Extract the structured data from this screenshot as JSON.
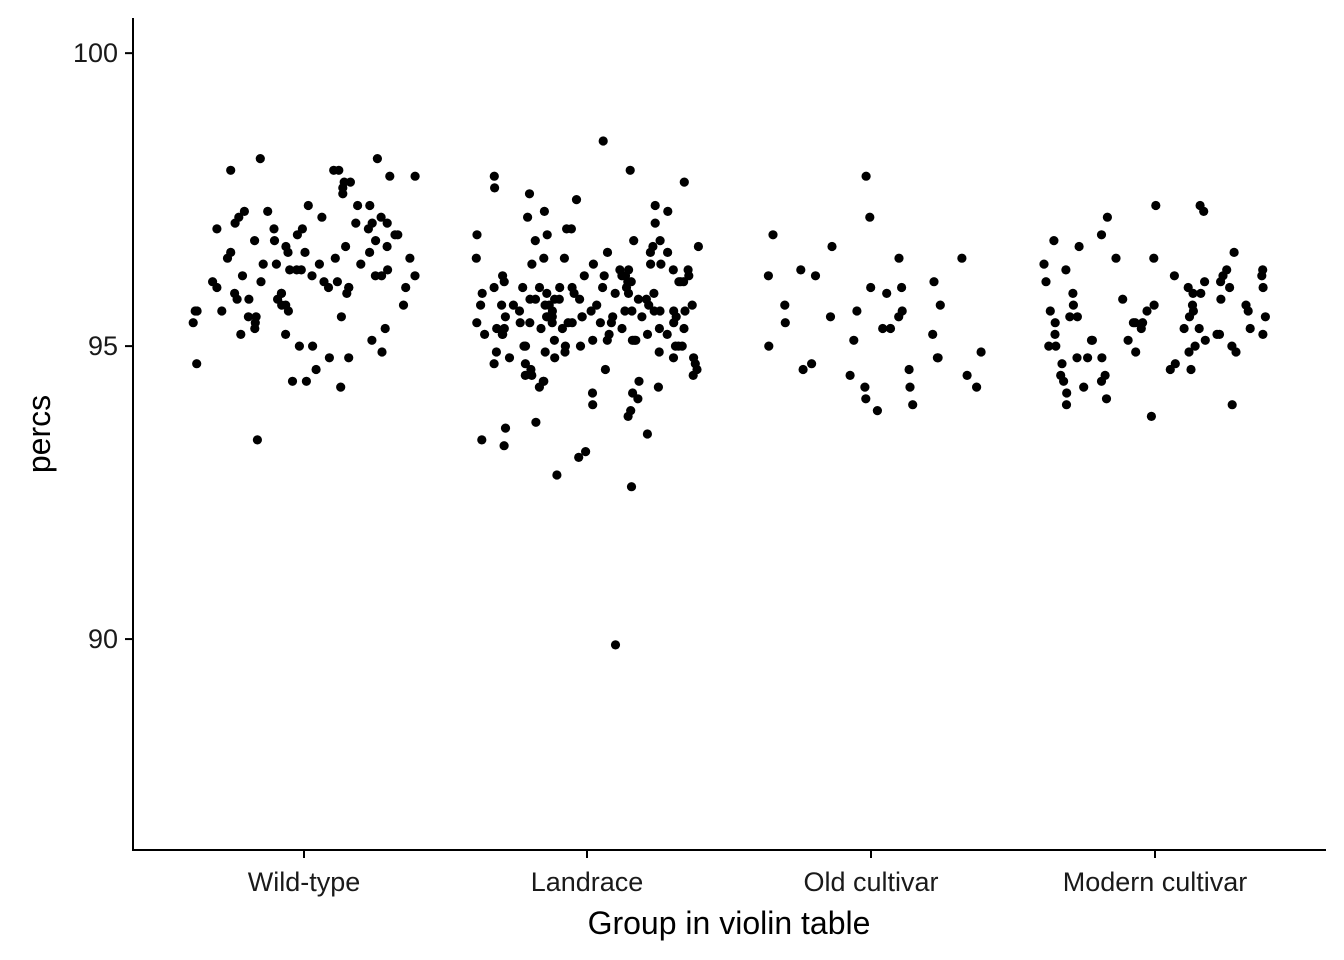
{
  "chart_data": {
    "type": "scatter",
    "subtype": "jitter strip plot",
    "xlabel": "Group in violin table",
    "ylabel": "percs",
    "categories": [
      "Wild-type",
      "Landrace",
      "Old cultivar",
      "Modern cultivar"
    ],
    "ylim": [
      86.4,
      100.6
    ],
    "yticks": [
      "90",
      "95",
      "100"
    ],
    "grid": false,
    "legend": "none",
    "point_color": "#000000",
    "series": [
      {
        "category": "Wild-type",
        "values": [
          98.0,
          98.2,
          98.0,
          97.9,
          97.8,
          97.7,
          98.0,
          97.9,
          97.8,
          98.2,
          97.4,
          97.3,
          97.4,
          97.1,
          97.2,
          97.3,
          97.2,
          97.0,
          97.1,
          97.2,
          97.0,
          96.9,
          97.1,
          97.0,
          96.8,
          96.8,
          96.9,
          96.7,
          96.7,
          96.6,
          96.8,
          96.6,
          96.5,
          96.4,
          96.4,
          96.6,
          96.5,
          96.3,
          96.4,
          96.2,
          96.3,
          96.3,
          96.2,
          96.1,
          96.2,
          96.2,
          96.0,
          96.0,
          96.1,
          96.1,
          95.9,
          95.9,
          96.0,
          95.8,
          95.8,
          95.7,
          95.7,
          95.7,
          95.6,
          95.6,
          95.5,
          95.6,
          95.5,
          95.4,
          95.5,
          95.3,
          95.2,
          95.2,
          95.1,
          95.0,
          95.0,
          94.9,
          94.8,
          94.8,
          94.7,
          94.6,
          94.4,
          94.4,
          94.3,
          93.4,
          96.3,
          96.0,
          95.8,
          97.4,
          96.9,
          96.0,
          95.6,
          96.5,
          96.1,
          95.9,
          97.1,
          96.7,
          95.4,
          96.6,
          96.2,
          97.0,
          95.9,
          96.4,
          97.6,
          95.3
        ]
      },
      {
        "category": "Landrace",
        "values": [
          98.5,
          98.0,
          97.9,
          97.8,
          97.7,
          97.6,
          97.5,
          97.4,
          97.3,
          97.3,
          97.2,
          97.1,
          97.0,
          97.0,
          96.9,
          96.9,
          96.8,
          96.8,
          96.7,
          96.7,
          96.6,
          96.6,
          96.5,
          96.5,
          96.4,
          96.4,
          96.3,
          96.3,
          96.2,
          96.2,
          96.2,
          96.1,
          96.1,
          96.1,
          96.0,
          96.0,
          96.0,
          95.9,
          95.9,
          95.9,
          95.8,
          95.8,
          95.8,
          95.7,
          95.7,
          95.7,
          95.7,
          95.6,
          95.6,
          95.6,
          95.6,
          95.5,
          95.5,
          95.5,
          95.5,
          95.4,
          95.4,
          95.4,
          95.4,
          95.3,
          95.3,
          95.3,
          95.2,
          95.2,
          95.2,
          95.1,
          95.1,
          95.1,
          95.0,
          95.0,
          95.0,
          94.9,
          94.9,
          94.8,
          94.8,
          94.7,
          94.7,
          94.6,
          94.6,
          94.5,
          94.5,
          94.4,
          94.4,
          94.3,
          94.3,
          94.2,
          94.1,
          94.0,
          93.9,
          93.8,
          93.7,
          93.6,
          93.5,
          93.4,
          93.3,
          93.2,
          93.1,
          92.8,
          92.6,
          89.9,
          96.2,
          95.6,
          95.4,
          96.0,
          95.1,
          95.7,
          95.3,
          96.1,
          95.5,
          94.9,
          96.3,
          95.8,
          95.2,
          95.0,
          96.5,
          95.6,
          94.8,
          95.9,
          95.4,
          96.0,
          95.7,
          95.5,
          95.3,
          96.2,
          95.1,
          94.6,
          96.4,
          95.8,
          95.6,
          95.0,
          94.4,
          96.6,
          95.2,
          95.9,
          95.4,
          94.7,
          96.1,
          95.5,
          95.7,
          95.3,
          96.0,
          94.9,
          95.8,
          96.3,
          95.1,
          95.6,
          95.4,
          96.2,
          94.5,
          95.0,
          95.9,
          96.8,
          95.5,
          95.2,
          95.7,
          96.1,
          94.2,
          95.6,
          96.4,
          95.3,
          95.8,
          95.0,
          94.8,
          96.0,
          95.4,
          95.5
        ]
      },
      {
        "category": "Old cultivar",
        "values": [
          97.9,
          97.2,
          96.9,
          96.7,
          96.5,
          96.5,
          96.3,
          96.2,
          96.2,
          96.1,
          96.0,
          96.0,
          95.9,
          95.7,
          95.7,
          95.6,
          95.6,
          95.5,
          95.5,
          95.4,
          95.3,
          95.3,
          95.2,
          95.1,
          95.0,
          94.9,
          94.8,
          94.8,
          94.7,
          94.6,
          94.6,
          94.5,
          94.5,
          94.3,
          94.3,
          94.3,
          94.1,
          94.0,
          93.9
        ]
      },
      {
        "category": "Modern cultivar",
        "values": [
          97.4,
          97.4,
          97.3,
          97.2,
          96.9,
          96.8,
          96.7,
          96.6,
          96.5,
          96.5,
          96.4,
          96.3,
          96.3,
          96.2,
          96.2,
          96.2,
          96.1,
          96.1,
          96.0,
          96.0,
          96.0,
          95.9,
          95.9,
          95.8,
          95.8,
          95.7,
          95.7,
          95.7,
          95.6,
          95.6,
          95.6,
          95.5,
          95.5,
          95.5,
          95.4,
          95.4,
          95.4,
          95.3,
          95.3,
          95.3,
          95.2,
          95.2,
          95.2,
          95.1,
          95.1,
          95.1,
          95.0,
          95.0,
          95.0,
          94.9,
          94.9,
          94.9,
          94.8,
          94.8,
          94.7,
          94.7,
          94.6,
          94.6,
          94.5,
          94.5,
          94.4,
          94.4,
          94.3,
          94.2,
          94.1,
          94.0,
          94.0,
          93.8,
          95.6,
          95.2,
          95.9,
          95.0,
          95.4,
          96.1,
          95.7,
          94.8,
          95.3,
          96.3,
          95.5,
          95.1
        ]
      }
    ]
  }
}
